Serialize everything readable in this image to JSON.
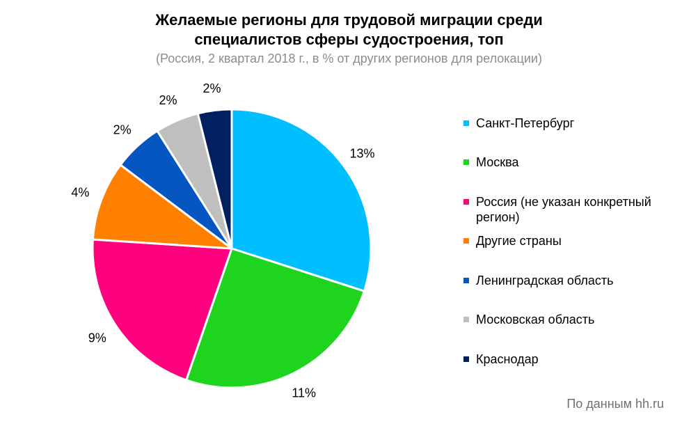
{
  "title_line1": "Желаемые регионы для трудовой миграции среди",
  "title_line2": "специалистов сферы судостроения, топ",
  "subtitle": "(Россия, 2 квартал 2018 г., в % от других регионов для релокации)",
  "source": "По данным hh.ru",
  "chart_data": {
    "type": "pie",
    "title": "Желаемые регионы для трудовой миграции среди специалистов сферы судостроения, топ",
    "subtitle": "(Россия, 2 квартал 2018 г., в % от других регионов для релокации)",
    "legend_position": "right",
    "slices": [
      {
        "label": "Санкт-Петербург",
        "value": 13,
        "display": "13%",
        "color": "#00BFFF"
      },
      {
        "label": "Москва",
        "value": 11,
        "display": "11%",
        "color": "#1ED41E"
      },
      {
        "label": "Россия (не указан конкретный регион)",
        "value": 9,
        "display": "9%",
        "color": "#FF007F"
      },
      {
        "label": "Другие страны",
        "value": 4,
        "display": "4%",
        "color": "#FF7F00"
      },
      {
        "label": "Ленинградская область",
        "value": 2.5,
        "display": "2%",
        "color": "#0556C0"
      },
      {
        "label": "Московская область",
        "value": 2.2,
        "display": "2%",
        "color": "#BFBFBF"
      },
      {
        "label": "Краснодар",
        "value": 1.7,
        "display": "2%",
        "color": "#002060"
      }
    ]
  }
}
